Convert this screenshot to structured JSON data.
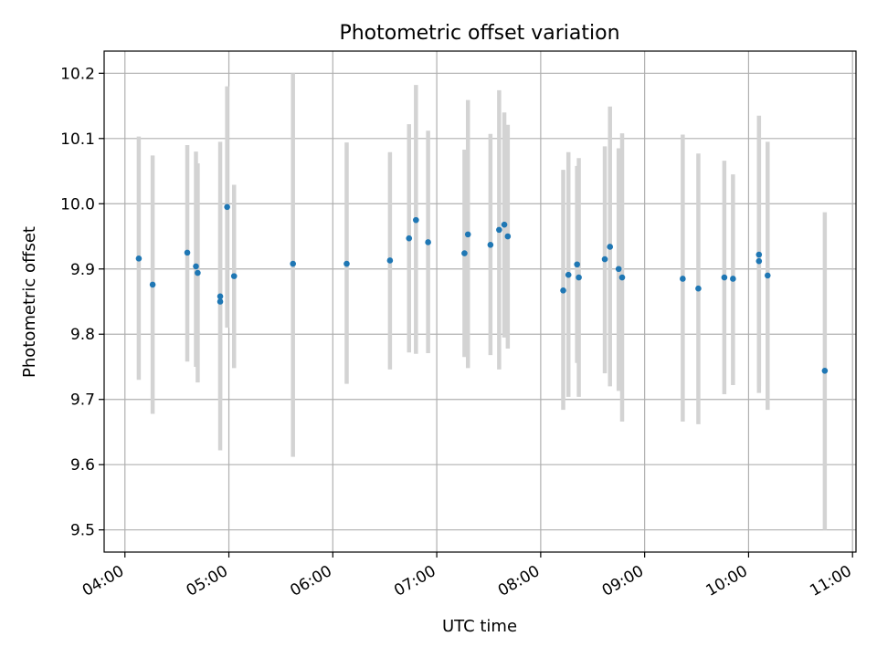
{
  "chart_data": {
    "type": "scatter",
    "title": "Photometric offset variation",
    "xlabel": "UTC time",
    "ylabel": "Photometric offset",
    "x_axis_type": "time",
    "xlim": [
      "03:48",
      "11:02"
    ],
    "ylim": [
      9.466,
      10.234
    ],
    "x_ticks": [
      "04:00",
      "05:00",
      "06:00",
      "07:00",
      "08:00",
      "09:00",
      "10:00",
      "11:00"
    ],
    "y_ticks": [
      "9.5",
      "9.6",
      "9.7",
      "9.8",
      "9.9",
      "10.0",
      "10.1",
      "10.2"
    ],
    "grid": true,
    "marker_color": "#1f77b4",
    "errorbar_color": "#d3d3d3",
    "points": [
      {
        "t": "04:08",
        "y": 9.916,
        "lo": 9.73,
        "hi": 10.103
      },
      {
        "t": "04:16",
        "y": 9.876,
        "lo": 9.678,
        "hi": 10.074
      },
      {
        "t": "04:36",
        "y": 9.925,
        "lo": 9.758,
        "hi": 10.09
      },
      {
        "t": "04:41",
        "y": 9.904,
        "lo": 9.75,
        "hi": 10.08
      },
      {
        "t": "04:42",
        "y": 9.894,
        "lo": 9.726,
        "hi": 10.062
      },
      {
        "t": "04:55",
        "y": 9.858,
        "lo": 9.622,
        "hi": 10.095
      },
      {
        "t": "04:55",
        "y": 9.85,
        "lo": 9.7,
        "hi": 10.0
      },
      {
        "t": "04:59",
        "y": 9.995,
        "lo": 9.81,
        "hi": 10.18
      },
      {
        "t": "05:03",
        "y": 9.889,
        "lo": 9.748,
        "hi": 10.029
      },
      {
        "t": "05:37",
        "y": 9.908,
        "lo": 9.612,
        "hi": 10.2
      },
      {
        "t": "06:08",
        "y": 9.908,
        "lo": 9.724,
        "hi": 10.094
      },
      {
        "t": "06:33",
        "y": 9.913,
        "lo": 9.746,
        "hi": 10.079
      },
      {
        "t": "06:44",
        "y": 9.947,
        "lo": 9.772,
        "hi": 10.122
      },
      {
        "t": "06:48",
        "y": 9.975,
        "lo": 9.77,
        "hi": 10.182
      },
      {
        "t": "06:55",
        "y": 9.941,
        "lo": 9.771,
        "hi": 10.112
      },
      {
        "t": "07:16",
        "y": 9.924,
        "lo": 9.765,
        "hi": 10.083
      },
      {
        "t": "07:18",
        "y": 9.953,
        "lo": 9.748,
        "hi": 10.159
      },
      {
        "t": "07:31",
        "y": 9.937,
        "lo": 9.768,
        "hi": 10.107
      },
      {
        "t": "07:36",
        "y": 9.96,
        "lo": 9.746,
        "hi": 10.174
      },
      {
        "t": "07:39",
        "y": 9.968,
        "lo": 9.795,
        "hi": 10.14
      },
      {
        "t": "07:41",
        "y": 9.95,
        "lo": 9.778,
        "hi": 10.121
      },
      {
        "t": "08:13",
        "y": 9.867,
        "lo": 9.684,
        "hi": 10.052
      },
      {
        "t": "08:16",
        "y": 9.891,
        "lo": 9.704,
        "hi": 10.079
      },
      {
        "t": "08:21",
        "y": 9.907,
        "lo": 9.756,
        "hi": 10.058
      },
      {
        "t": "08:22",
        "y": 9.887,
        "lo": 9.704,
        "hi": 10.07
      },
      {
        "t": "08:37",
        "y": 9.915,
        "lo": 9.74,
        "hi": 10.088
      },
      {
        "t": "08:40",
        "y": 9.934,
        "lo": 9.72,
        "hi": 10.149
      },
      {
        "t": "08:45",
        "y": 9.9,
        "lo": 9.713,
        "hi": 10.085
      },
      {
        "t": "08:47",
        "y": 9.887,
        "lo": 9.666,
        "hi": 10.108
      },
      {
        "t": "09:22",
        "y": 9.885,
        "lo": 9.666,
        "hi": 10.106
      },
      {
        "t": "09:31",
        "y": 9.87,
        "lo": 9.662,
        "hi": 10.077
      },
      {
        "t": "09:46",
        "y": 9.887,
        "lo": 9.708,
        "hi": 10.066
      },
      {
        "t": "09:51",
        "y": 9.885,
        "lo": 9.722,
        "hi": 10.045
      },
      {
        "t": "10:06",
        "y": 9.922,
        "lo": 9.71,
        "hi": 10.135
      },
      {
        "t": "10:06",
        "y": 9.912,
        "lo": 9.72,
        "hi": 10.1
      },
      {
        "t": "10:11",
        "y": 9.89,
        "lo": 9.684,
        "hi": 10.095
      },
      {
        "t": "10:44",
        "y": 9.744,
        "lo": 9.5,
        "hi": 9.987
      }
    ]
  }
}
